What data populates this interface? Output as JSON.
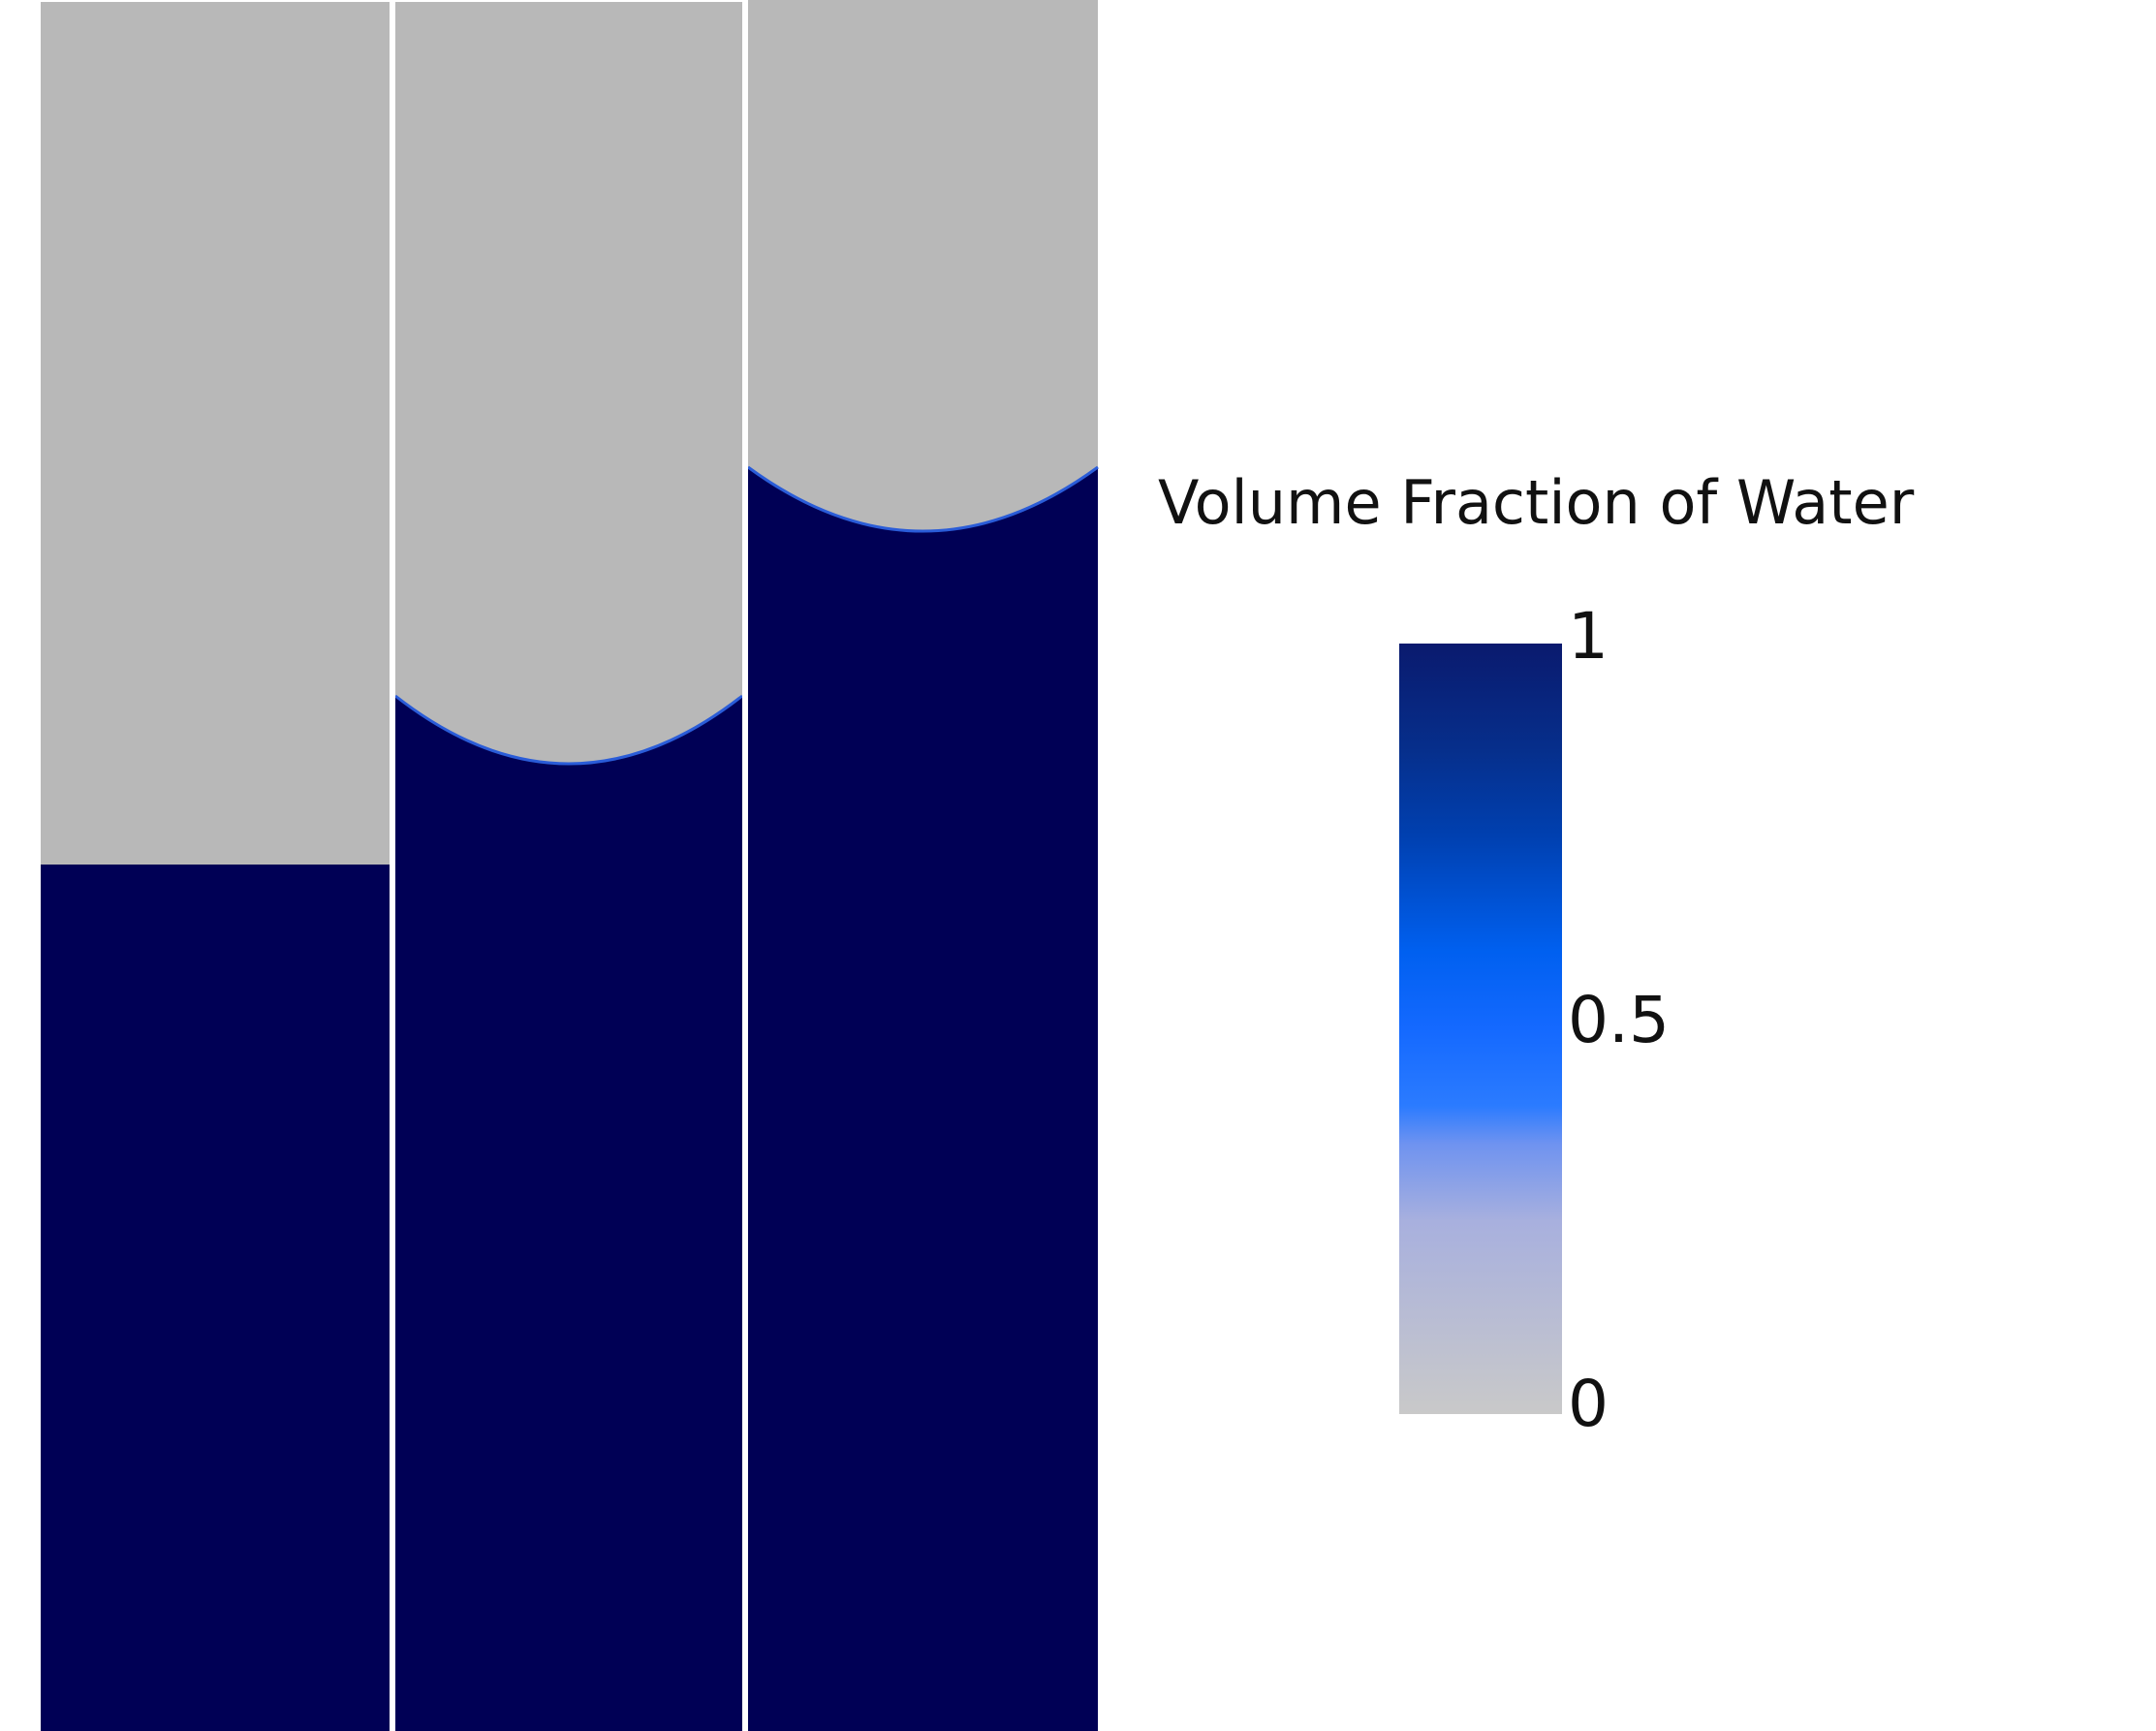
{
  "colors": {
    "water": "#000055",
    "air": "#b8b8b8",
    "divider": "#ffffff"
  },
  "panels": [
    {
      "interface": "flat"
    },
    {
      "interface": "meniscus"
    },
    {
      "interface": "meniscus"
    }
  ],
  "legend": {
    "title": "Volume Fraction of Water",
    "ticks": [
      {
        "label": "1",
        "value": 1
      },
      {
        "label": "0.5",
        "value": 0.5
      },
      {
        "label": "0",
        "value": 0
      }
    ],
    "gradient": [
      {
        "value": 1.0,
        "color": "#0a1a6e"
      },
      {
        "value": 0.86,
        "color": "#062f8c"
      },
      {
        "value": 0.75,
        "color": "#0040b0"
      },
      {
        "value": 0.6,
        "color": "#0060f0"
      },
      {
        "value": 0.5,
        "color": "#1469ff"
      },
      {
        "value": 0.4,
        "color": "#2b7bff"
      },
      {
        "value": 0.35,
        "color": "#6f93f0"
      },
      {
        "value": 0.25,
        "color": "#a8b0de"
      },
      {
        "value": 0.0,
        "color": "#c9c9c9"
      }
    ]
  }
}
